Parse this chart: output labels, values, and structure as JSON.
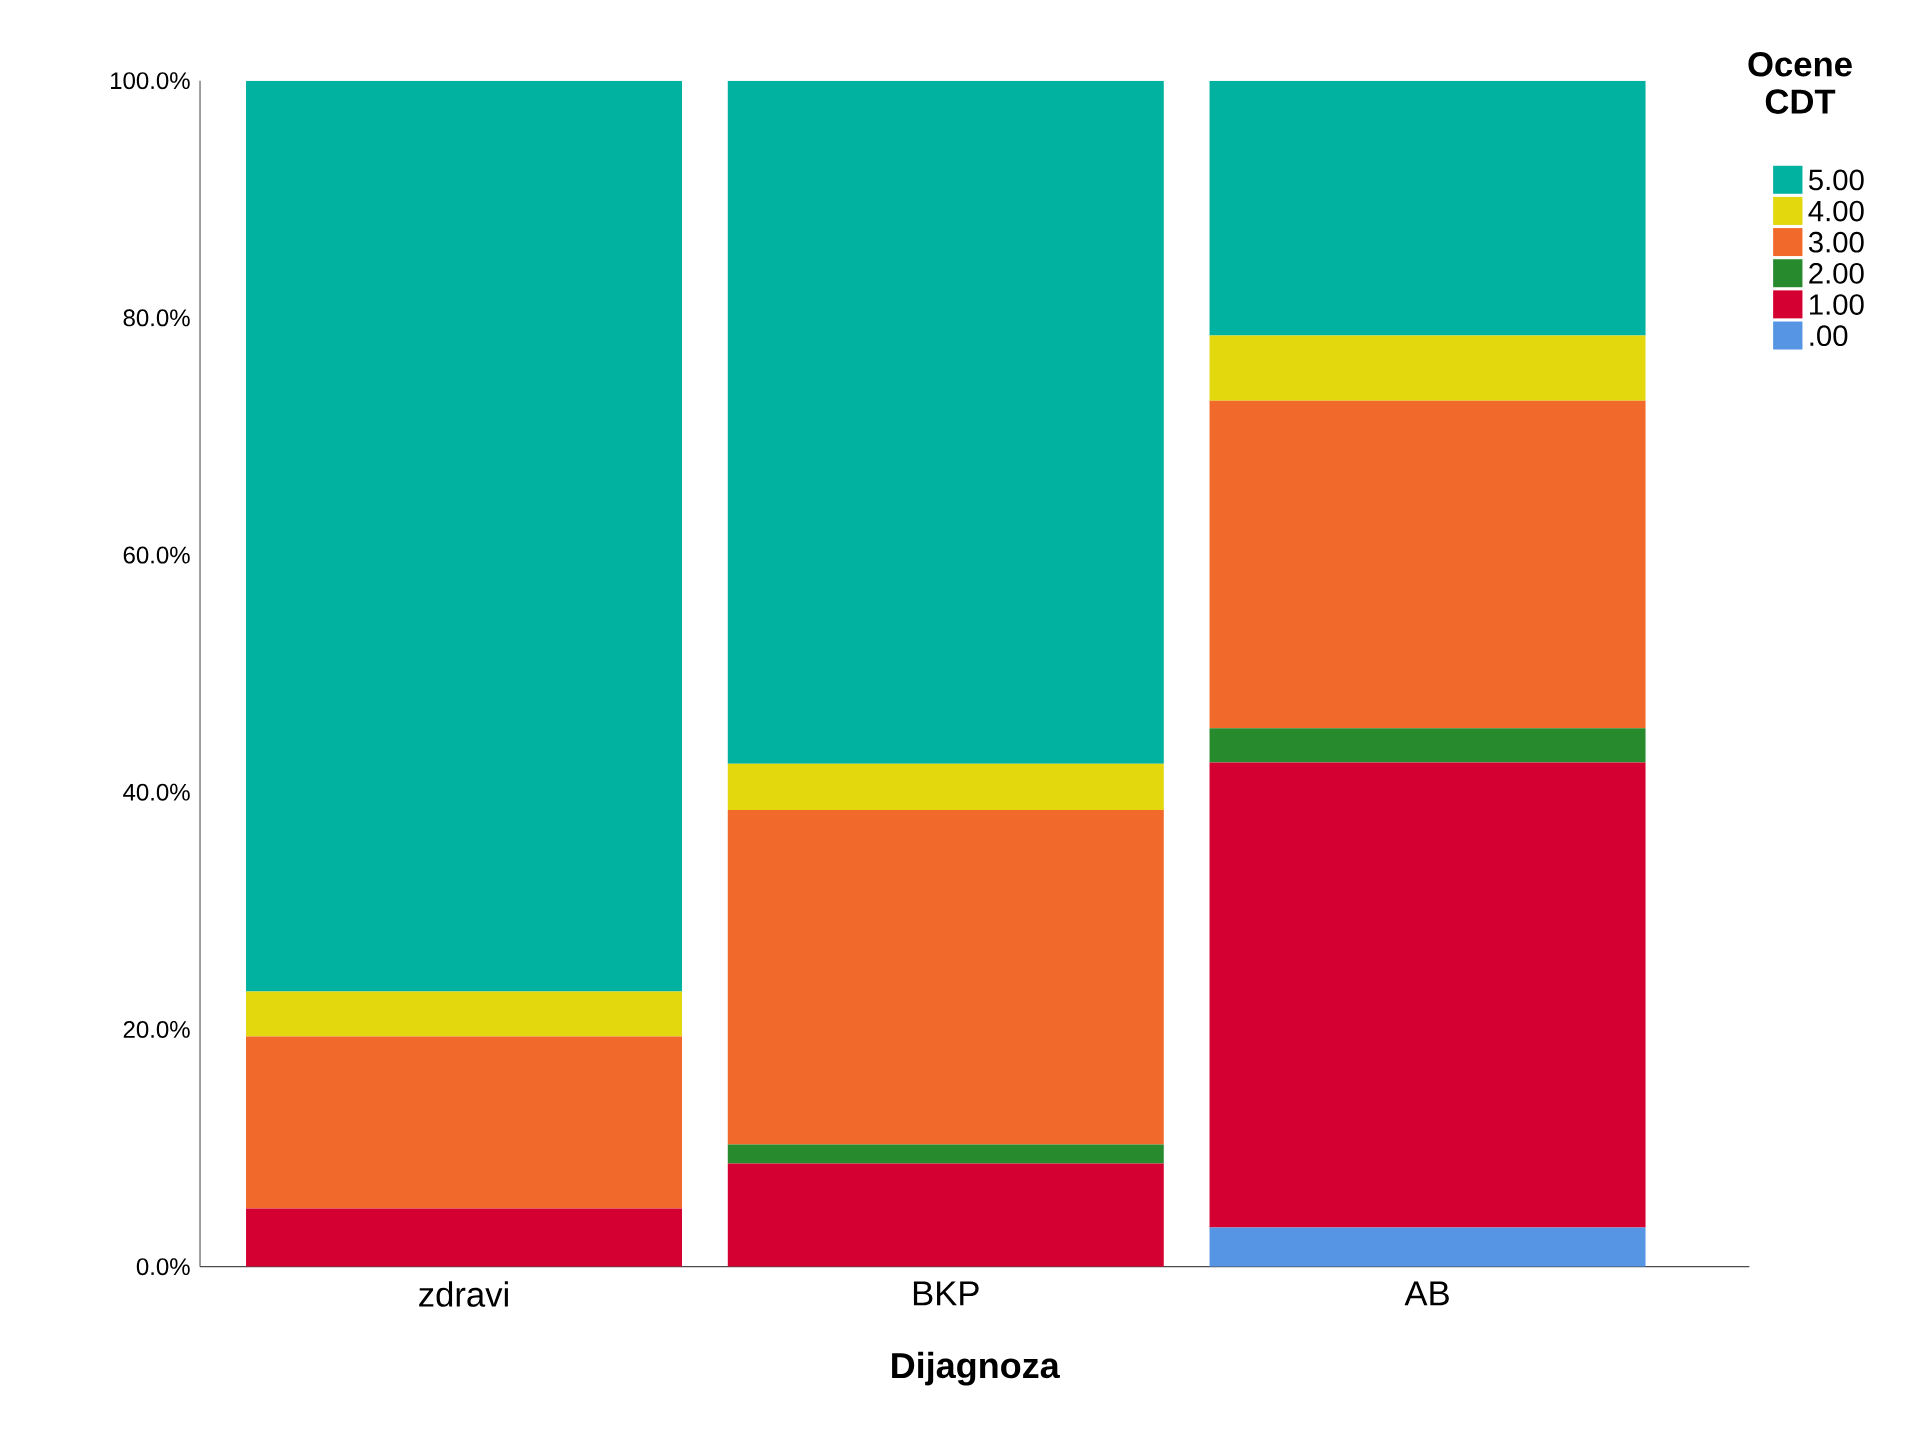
{
  "chart_data": {
    "type": "bar",
    "stacked": true,
    "xlabel": "Dijagnoza",
    "legend_title": "Ocene CDT",
    "legend": "top right",
    "categories": [
      "zdravi",
      "BKP",
      "AB"
    ],
    "series": [
      {
        "name": ".00",
        "color": "#5595e3",
        "values": [
          0,
          0,
          3.3
        ]
      },
      {
        "name": "1.00",
        "color": "#d50032",
        "values": [
          4.9,
          8.7,
          39.2
        ]
      },
      {
        "name": "2.00",
        "color": "#278a2d",
        "values": [
          0,
          1.6,
          2.9
        ]
      },
      {
        "name": "3.00",
        "color": "#f2692c",
        "values": [
          14.5,
          28.2,
          27.6
        ]
      },
      {
        "name": "4.00",
        "color": "#e3d70e",
        "values": [
          3.8,
          3.9,
          5.5
        ]
      },
      {
        "name": "5.00",
        "color": "#02b2a0",
        "values": [
          76.8,
          57.6,
          21.5
        ]
      }
    ],
    "ylim": [
      0,
      100
    ],
    "yticks": [
      {
        "value": 0,
        "label": "0.0%"
      },
      {
        "value": 20,
        "label": "20.0%"
      },
      {
        "value": 40,
        "label": "40.0%"
      },
      {
        "value": 60,
        "label": "60.0%"
      },
      {
        "value": 80,
        "label": "80.0%"
      },
      {
        "value": 100,
        "label": "100.0%"
      }
    ],
    "grid": false
  }
}
